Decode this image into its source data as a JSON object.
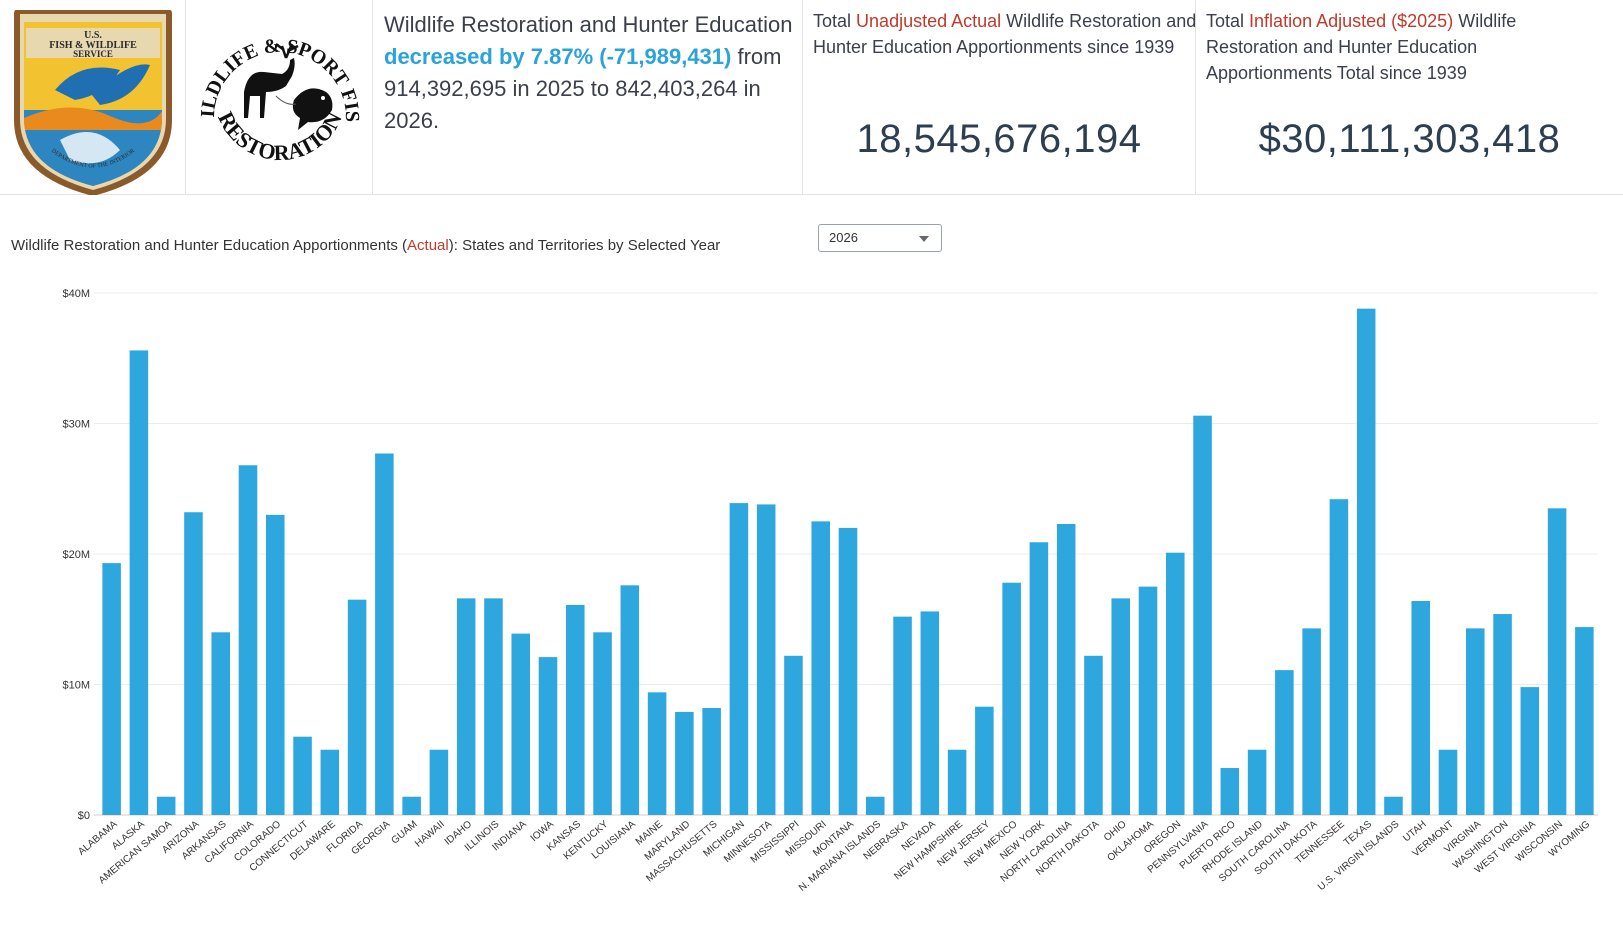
{
  "logos": {
    "fws": {
      "line1": "U.S.",
      "line2": "FISH & WILDLIFE",
      "line3": "SERVICE",
      "ring": "DEPARTMENT OF THE INTERIOR"
    },
    "wsfr": {
      "arc_top": "WILDLIFE & SPORT FISH",
      "arc_bottom": "RESTORATION"
    }
  },
  "summary": {
    "part1": "Wildlife Restoration and Hunter Education",
    "change_pct": "decreased by 7.87%",
    "change_abs": "(-71,989,431)",
    "part2": "from 914,392,695 in 2025 to 842,403,264 in 2026."
  },
  "kpi_unadjusted": {
    "prefix": "Total",
    "highlight": "Unadjusted Actual",
    "suffix": "Wildlife Restoration and Hunter Education Apportionments since 1939",
    "value": "18,545,676,194"
  },
  "kpi_inflation": {
    "prefix": "Total",
    "highlight": "Inflation Adjusted ($2025)",
    "suffix": "Wildlife Restoration and Hunter Education Apportionments Total since 1939",
    "value": "$30,111,303,418"
  },
  "chart_heading": {
    "part1": "Wildlife Restoration and Hunter Education Apportionments (",
    "highlight": "Actual",
    "part2": "): States and Territories by Selected Year"
  },
  "year_select": {
    "value": "2026"
  },
  "colors": {
    "bar": "#2ea7de",
    "highlight_red": "#c0392b",
    "highlight_blue": "#29a3d9"
  },
  "chart_data": {
    "type": "bar",
    "title": "",
    "xlabel": "",
    "ylabel": "",
    "ylim": [
      0,
      40000000
    ],
    "yticks": [
      0,
      10000000,
      20000000,
      30000000,
      40000000
    ],
    "ytick_labels": [
      "$0",
      "$10M",
      "$20M",
      "$30M",
      "$40M"
    ],
    "grid": true,
    "categories": [
      "ALABAMA",
      "ALASKA",
      "AMERICAN SAMOA",
      "ARIZONA",
      "ARKANSAS",
      "CALIFORNIA",
      "COLORADO",
      "CONNECTICUT",
      "DELAWARE",
      "FLORIDA",
      "GEORGIA",
      "GUAM",
      "HAWAII",
      "IDAHO",
      "ILLINOIS",
      "INDIANA",
      "IOWA",
      "KANSAS",
      "KENTUCKY",
      "LOUISIANA",
      "MAINE",
      "MARYLAND",
      "MASSACHUSETTS",
      "MICHIGAN",
      "MINNESOTA",
      "MISSISSIPPI",
      "MISSOURI",
      "MONTANA",
      "N. MARIANA ISLANDS",
      "NEBRASKA",
      "NEVADA",
      "NEW HAMPSHIRE",
      "NEW JERSEY",
      "NEW MEXICO",
      "NEW YORK",
      "NORTH CAROLINA",
      "NORTH DAKOTA",
      "OHIO",
      "OKLAHOMA",
      "OREGON",
      "PENNSYLVANIA",
      "PUERTO RICO",
      "RHODE ISLAND",
      "SOUTH CAROLINA",
      "SOUTH DAKOTA",
      "TENNESSEE",
      "TEXAS",
      "U.S. VIRGIN ISLANDS",
      "UTAH",
      "VERMONT",
      "VIRGINIA",
      "WASHINGTON",
      "WEST VIRGINIA",
      "WISCONSIN",
      "WYOMING"
    ],
    "values": [
      19300000,
      35600000,
      1400000,
      23200000,
      14000000,
      26800000,
      23000000,
      6000000,
      5000000,
      16500000,
      27700000,
      1400000,
      5000000,
      16600000,
      16600000,
      13900000,
      12100000,
      16100000,
      14000000,
      17600000,
      9400000,
      7900000,
      8200000,
      23900000,
      23800000,
      12200000,
      22500000,
      22000000,
      1400000,
      15200000,
      15600000,
      5000000,
      8300000,
      17800000,
      20900000,
      22300000,
      12200000,
      16600000,
      17500000,
      20100000,
      30600000,
      3600000,
      5000000,
      11100000,
      14300000,
      24200000,
      38800000,
      1400000,
      16400000,
      5000000,
      14300000,
      15400000,
      9800000,
      23500000,
      14400000
    ]
  }
}
